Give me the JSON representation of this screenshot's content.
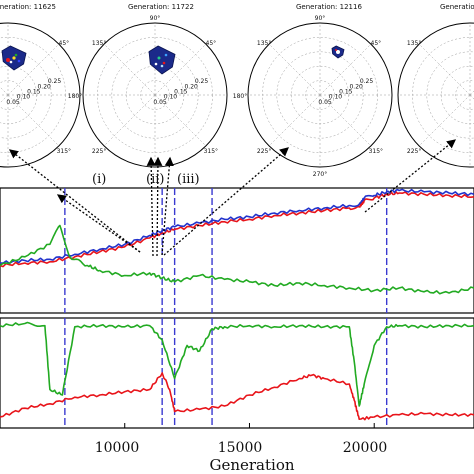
{
  "polar_panels": [
    {
      "title": "Generation: 11625",
      "angle_labels": [
        "135°",
        "45°",
        "315°"
      ],
      "radial_labels": [
        "0.05",
        "0.10",
        "0.15",
        "0.20",
        "0.25"
      ]
    },
    {
      "title": "Generation: 11722",
      "angle_labels": [
        "90°",
        "135°",
        "45°",
        "180°",
        "225°",
        "315°"
      ],
      "radial_labels": [
        "0.05",
        "0.10",
        "0.15",
        "0.20",
        "0.25"
      ]
    },
    {
      "title": "Generation: 12116",
      "angle_labels": [
        "90°",
        "135°",
        "45°",
        "180°",
        "225°",
        "315°",
        "270°"
      ],
      "radial_labels": [
        "0.05",
        "0.10",
        "0.15",
        "0.20",
        "0.25"
      ]
    },
    {
      "title": "Generatio",
      "angle_labels": [
        "135°",
        "225°"
      ],
      "radial_labels": []
    }
  ],
  "markers": {
    "i": "(i)",
    "ii": "(ii)",
    "iii": "(iii)"
  },
  "colors": {
    "red": "#e8141a",
    "blue": "#2233cc",
    "green": "#22aa22",
    "vline": "#3a3ad0",
    "cluster": "#1b2a8a"
  },
  "chart_data": [
    {
      "type": "line",
      "title": "",
      "xlabel": "",
      "ylabel": "",
      "xlim": [
        5000,
        24000
      ],
      "ylim": [
        0,
        1
      ],
      "grid": false,
      "vertical_lines_x": [
        7600,
        11500,
        12000,
        13500,
        20500
      ],
      "series": [
        {
          "color": "#e8141a",
          "x": [
            5000,
            6000,
            7000,
            8000,
            9000,
            10000,
            11000,
            11500,
            12000,
            13000,
            14000,
            15000,
            16000,
            17000,
            18000,
            19000,
            19400,
            19600,
            20000,
            20500,
            21000,
            22000,
            23000,
            24000
          ],
          "y": [
            0.38,
            0.4,
            0.41,
            0.45,
            0.49,
            0.53,
            0.6,
            0.64,
            0.67,
            0.7,
            0.73,
            0.75,
            0.78,
            0.8,
            0.82,
            0.84,
            0.85,
            0.9,
            0.92,
            0.95,
            0.96,
            0.95,
            0.94,
            0.93
          ]
        },
        {
          "color": "#2233cc",
          "x": [
            5000,
            6000,
            7000,
            8000,
            9000,
            10000,
            11000,
            11500,
            12000,
            13000,
            14000,
            15000,
            16000,
            17000,
            18000,
            19000,
            19400,
            19600,
            20000,
            20500,
            21000,
            22000,
            23000,
            24000
          ],
          "y": [
            0.4,
            0.42,
            0.43,
            0.47,
            0.51,
            0.55,
            0.62,
            0.66,
            0.69,
            0.72,
            0.75,
            0.77,
            0.8,
            0.82,
            0.84,
            0.86,
            0.87,
            0.92,
            0.94,
            0.97,
            0.98,
            0.97,
            0.96,
            0.95
          ]
        },
        {
          "color": "#22aa22",
          "x": [
            5000,
            6000,
            7000,
            7400,
            7800,
            8500,
            9000,
            10000,
            11000,
            11500,
            12000,
            13000,
            14000,
            15000,
            16000,
            17000,
            18000,
            19000,
            20000,
            21000,
            22000,
            23000,
            24000
          ],
          "y": [
            0.38,
            0.45,
            0.55,
            0.7,
            0.45,
            0.38,
            0.34,
            0.3,
            0.32,
            0.28,
            0.25,
            0.3,
            0.27,
            0.25,
            0.22,
            0.24,
            0.22,
            0.2,
            0.18,
            0.2,
            0.17,
            0.16,
            0.2
          ]
        }
      ]
    },
    {
      "type": "line",
      "title": "",
      "xlabel": "Generation",
      "ylabel": "",
      "xlim": [
        5000,
        24000
      ],
      "ylim": [
        0,
        1
      ],
      "x_ticks": [
        "10000",
        "15000",
        "20000"
      ],
      "x_tick_values": [
        10000,
        15000,
        20000
      ],
      "grid": false,
      "vertical_lines_x": [
        7600,
        11500,
        12000,
        13500,
        20500
      ],
      "series": [
        {
          "color": "#22aa22",
          "x": [
            5000,
            6000,
            6800,
            7000,
            7500,
            8000,
            9000,
            10000,
            11000,
            11500,
            12000,
            12500,
            13000,
            13500,
            14000,
            15000,
            16000,
            17000,
            18000,
            19000,
            19200,
            19400,
            19600,
            20000,
            20500,
            21000,
            22000,
            23000,
            24000
          ],
          "y": [
            0.93,
            0.95,
            0.93,
            0.35,
            0.3,
            0.92,
            0.93,
            0.92,
            0.93,
            0.8,
            0.45,
            0.75,
            0.7,
            0.9,
            0.92,
            0.93,
            0.92,
            0.93,
            0.92,
            0.92,
            0.6,
            0.2,
            0.4,
            0.75,
            0.92,
            0.93,
            0.92,
            0.93,
            0.93
          ]
        },
        {
          "color": "#e8141a",
          "x": [
            5000,
            6000,
            7000,
            8000,
            9000,
            10000,
            11000,
            11500,
            11800,
            12000,
            13000,
            14000,
            15000,
            16000,
            17000,
            17500,
            18000,
            19000,
            19200,
            19400,
            20000,
            21000,
            22000,
            23000,
            24000
          ],
          "y": [
            0.1,
            0.18,
            0.22,
            0.28,
            0.3,
            0.33,
            0.35,
            0.5,
            0.35,
            0.15,
            0.17,
            0.2,
            0.3,
            0.37,
            0.45,
            0.48,
            0.45,
            0.4,
            0.25,
            0.08,
            0.1,
            0.12,
            0.13,
            0.12,
            0.12
          ]
        }
      ]
    }
  ]
}
